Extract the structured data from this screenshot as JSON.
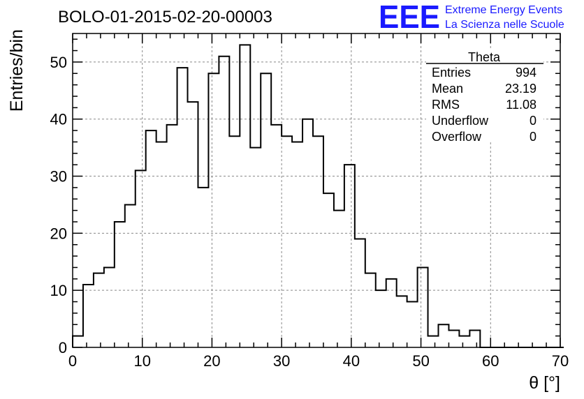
{
  "chart_data": {
    "type": "histogram",
    "title": "BOLO-01-2015-02-20-00003",
    "xlabel": "θ [°]",
    "ylabel": "Entries/bin",
    "xlim": [
      0,
      70
    ],
    "ylim": [
      0,
      55
    ],
    "xticks": [
      "0",
      "10",
      "20",
      "30",
      "40",
      "50",
      "60",
      "70"
    ],
    "yticks": [
      "0",
      "10",
      "20",
      "30",
      "40",
      "50"
    ],
    "grid": true,
    "bin_width": 1.5,
    "bin_start": 0,
    "values": [
      2,
      11,
      13,
      14,
      22,
      25,
      31,
      38,
      36,
      39,
      49,
      43,
      28,
      48,
      51,
      37,
      53,
      35,
      48,
      39,
      37,
      36,
      40,
      37,
      27,
      24,
      32,
      19,
      13,
      10,
      12,
      9,
      8,
      14,
      2,
      4,
      3,
      2,
      3,
      0,
      0,
      0,
      0,
      0,
      0,
      0,
      0
    ],
    "stats": {
      "name": "Theta",
      "rows": [
        {
          "label": "Entries",
          "value": "994"
        },
        {
          "label": "Mean",
          "value": "23.19"
        },
        {
          "label": "RMS",
          "value": "11.08"
        },
        {
          "label": "Underflow",
          "value": "0"
        },
        {
          "label": "Overflow",
          "value": "0"
        }
      ]
    }
  },
  "logo": {
    "mark": "EEE",
    "line1": "Extreme Energy Events",
    "line2": "La Scienza nelle Scuole",
    "color": "#1a1aff"
  }
}
